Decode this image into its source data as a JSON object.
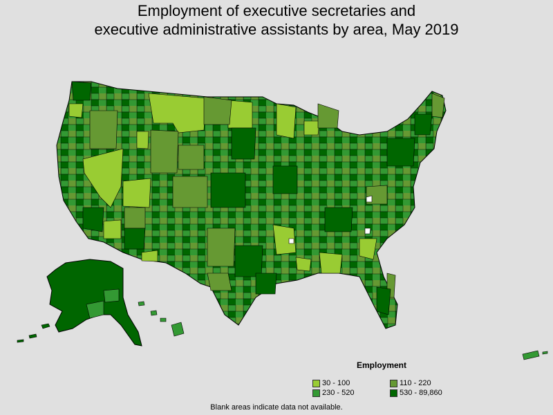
{
  "title_line1": "Employment of executive secretaries and",
  "title_line2": "executive administrative assistants by area, May 2019",
  "legend": {
    "title": "Employment",
    "items": [
      {
        "label": "30 - 100",
        "color": "#99cc33"
      },
      {
        "label": "110 - 220",
        "color": "#669933"
      },
      {
        "label": "230 - 520",
        "color": "#339933"
      },
      {
        "label": "530 - 89,860",
        "color": "#006600"
      }
    ]
  },
  "footnote": "Blank areas indicate data not available.",
  "colors": {
    "background": "#e0e0e0",
    "border": "#000000",
    "no_data": "#ffffff"
  }
}
